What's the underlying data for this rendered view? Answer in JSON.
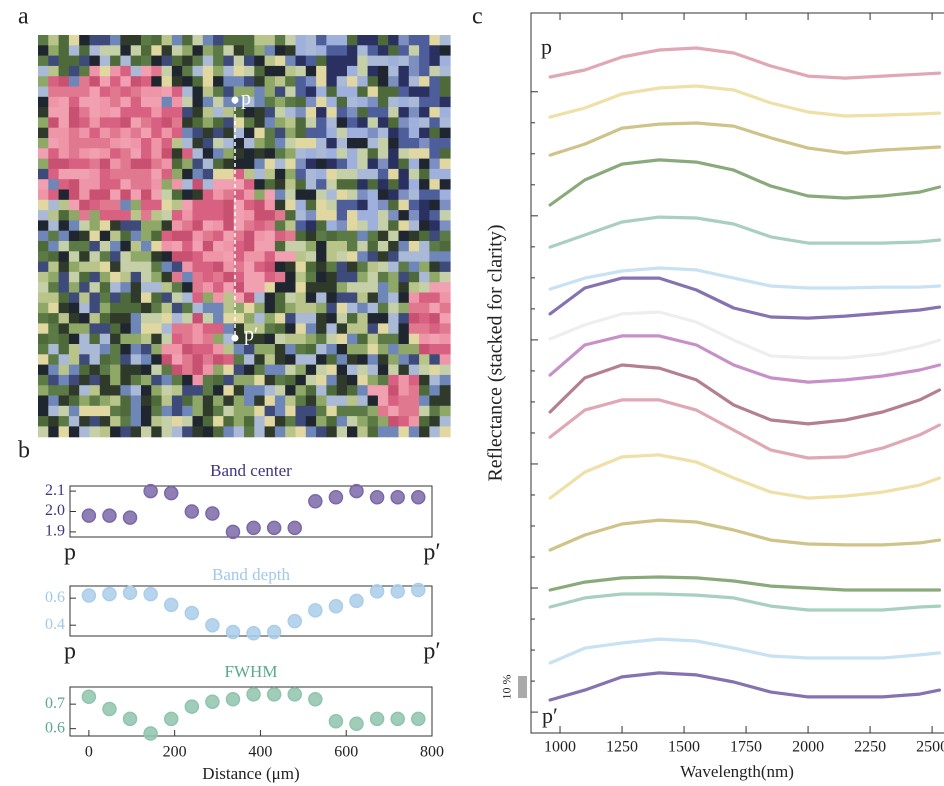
{
  "panel_labels": [
    "a",
    "b",
    "c"
  ],
  "image": {
    "labels": [
      "p",
      "p′"
    ]
  },
  "chart_data": [
    {
      "type": "scatter",
      "title": "Band center",
      "color": "#7b68a8",
      "title_color": "#3d3580",
      "x": [
        0,
        48,
        96,
        144,
        192,
        240,
        288,
        336,
        384,
        432,
        480,
        528,
        576,
        624,
        672,
        720,
        768
      ],
      "values": [
        1.98,
        1.98,
        1.97,
        2.1,
        2.09,
        2.0,
        1.99,
        1.9,
        1.92,
        1.92,
        1.92,
        2.05,
        2.07,
        2.1,
        2.07,
        2.07,
        2.07
      ],
      "xlim": [
        -44,
        800
      ],
      "ylim": [
        1.875,
        2.125
      ],
      "yticks": [
        1.9,
        {
          "value": 2,
          "label": "2.0"
        },
        2.1
      ],
      "x_end_labels": [
        "p",
        "p′"
      ]
    },
    {
      "type": "scatter",
      "title": "Band depth",
      "color": "#aacdea",
      "title_color": "#9fc8ea",
      "x": [
        0,
        48,
        96,
        144,
        192,
        240,
        288,
        336,
        384,
        432,
        480,
        528,
        576,
        624,
        672,
        720,
        768
      ],
      "values": [
        0.62,
        0.63,
        0.64,
        0.63,
        0.55,
        0.49,
        0.4,
        0.35,
        0.34,
        0.35,
        0.43,
        0.51,
        0.54,
        0.58,
        0.65,
        0.65,
        0.66
      ],
      "xlim": [
        -44,
        800
      ],
      "ylim": [
        0.32,
        0.69
      ],
      "yticks": [
        0.4,
        0.6
      ],
      "x_end_labels": [
        "p",
        "p′"
      ]
    },
    {
      "type": "scatter",
      "title": "FWHM",
      "color": "#8fc4ae",
      "title_color": "#5aa88e",
      "x": [
        0,
        48,
        96,
        144,
        192,
        240,
        288,
        336,
        384,
        432,
        480,
        528,
        576,
        624,
        672,
        720,
        768
      ],
      "values": [
        0.73,
        0.68,
        0.64,
        0.58,
        0.64,
        0.69,
        0.71,
        0.72,
        0.74,
        0.74,
        0.74,
        0.72,
        0.63,
        0.62,
        0.64,
        0.64,
        0.64
      ],
      "xlim": [
        -44,
        800
      ],
      "ylim": [
        0.57,
        0.77
      ],
      "yticks": [
        0.6,
        0.7
      ],
      "xticks": [
        0,
        200,
        400,
        600,
        800
      ],
      "xlabel": "Distance (μm)"
    },
    {
      "type": "line",
      "xlabel": "Wavelength(nm)",
      "ylabel": "Reflectance (stacked for clarity)",
      "x": [
        960,
        1100,
        1250,
        1400,
        1550,
        1700,
        1850,
        2000,
        2150,
        2300,
        2450,
        2530
      ],
      "xlim": [
        883,
        2548
      ],
      "ylim": [
        0,
        327.3
      ],
      "xticks": [
        1000,
        1250,
        1500,
        1750,
        2000,
        2250,
        2500
      ],
      "yticks": [
        9.5,
        23.6,
        37.7,
        51.8,
        65.9,
        80.0,
        94.1,
        108.2,
        122.3,
        136.4,
        150.5,
        164.6,
        178.7,
        192.8,
        206.9,
        221.0,
        235.1,
        249.2,
        263.3,
        277.4,
        291.5
      ],
      "annotations": [
        "p",
        "p′"
      ],
      "scale_bar": {
        "value": 10,
        "label": "10 %"
      },
      "series": [
        {
          "color": "#e0a8b4",
          "values": [
            298.2,
            301.4,
            307.3,
            310.5,
            311.4,
            309.1,
            303.2,
            298.6,
            297.7,
            298.6,
            299.5,
            300
          ]
        },
        {
          "color": "#efe0a8",
          "values": [
            280,
            284.1,
            290.5,
            293.2,
            294.1,
            292.3,
            286.4,
            282.3,
            280.5,
            280.9,
            281.4,
            281.8
          ]
        },
        {
          "color": "#cfc38a",
          "values": [
            262.7,
            267.7,
            275,
            276.8,
            277.3,
            275.9,
            270.5,
            265.9,
            263.6,
            265,
            265.9,
            266.4
          ]
        },
        {
          "color": "#8aaa7c",
          "values": [
            240,
            251.4,
            258.6,
            260.5,
            259.5,
            255.9,
            248.6,
            244.1,
            243.2,
            244.1,
            245.9,
            248.2
          ]
        },
        {
          "color": "#a8cfbf",
          "values": [
            220.9,
            226.4,
            232.3,
            234.5,
            234.1,
            231.4,
            225.5,
            222.7,
            222.7,
            222.7,
            223.2,
            224.1
          ]
        },
        {
          "color": "#c8e2f4",
          "values": [
            201.8,
            206.8,
            210,
            211.4,
            210.5,
            206.8,
            203.2,
            202.3,
            202.3,
            202.7,
            202.7,
            203.2
          ]
        },
        {
          "color": "#8672b0",
          "values": [
            190.5,
            202.3,
            206.8,
            206.8,
            201.4,
            193.2,
            189.1,
            188.6,
            189.5,
            190.9,
            192.3,
            193.6
          ]
        },
        {
          "color": "#eeeeee",
          "values": [
            179.1,
            185.5,
            190.5,
            191.4,
            186.8,
            178.6,
            171.4,
            170.5,
            170.5,
            172.3,
            175.9,
            178.6
          ]
        },
        {
          "color": "#c890c8",
          "values": [
            162.7,
            176.4,
            180.5,
            180.5,
            176.4,
            167.3,
            161.4,
            159.5,
            160.5,
            162.3,
            165,
            167.3
          ]
        },
        {
          "color": "#b48090",
          "values": [
            145.9,
            161.4,
            167.3,
            165.9,
            160.5,
            149.1,
            142.3,
            140.5,
            142.3,
            145.9,
            151.4,
            155.9
          ]
        },
        {
          "color": "#e0a8b4",
          "values": [
            134.5,
            146.8,
            151.4,
            151.4,
            146.8,
            137.7,
            128.6,
            125,
            125.5,
            129.5,
            135.5,
            140
          ]
        },
        {
          "color": "#efe0a8",
          "values": [
            106.8,
            118.6,
            125.5,
            126.4,
            123.2,
            115.9,
            109.5,
            106.8,
            107.7,
            109.5,
            112.7,
            115.9
          ]
        },
        {
          "color": "#cfc38a",
          "values": [
            83.2,
            90,
            95,
            96.8,
            95.9,
            92.3,
            87.7,
            85.9,
            85.5,
            85.5,
            86.4,
            87.7
          ]
        },
        {
          "color": "#8aaa7c",
          "values": [
            65,
            68.6,
            70.5,
            70.9,
            70.5,
            69.1,
            66.8,
            65.9,
            65,
            65,
            65,
            65
          ]
        },
        {
          "color": "#a8cfbf",
          "values": [
            57.3,
            61.4,
            63.2,
            63.2,
            62.7,
            61.4,
            57.7,
            55.9,
            55.9,
            55.9,
            57.3,
            57.7
          ]
        },
        {
          "color": "#c8e2f4",
          "values": [
            31.8,
            38.6,
            40.9,
            42.7,
            41.8,
            38.6,
            35,
            34.1,
            34.1,
            34.1,
            35.5,
            36.4
          ]
        },
        {
          "color": "#8672b0",
          "values": [
            15,
            19.5,
            25.5,
            27.3,
            26.4,
            23.2,
            18.6,
            16.4,
            16.4,
            16.4,
            17.7,
            19.5
          ]
        }
      ]
    }
  ]
}
